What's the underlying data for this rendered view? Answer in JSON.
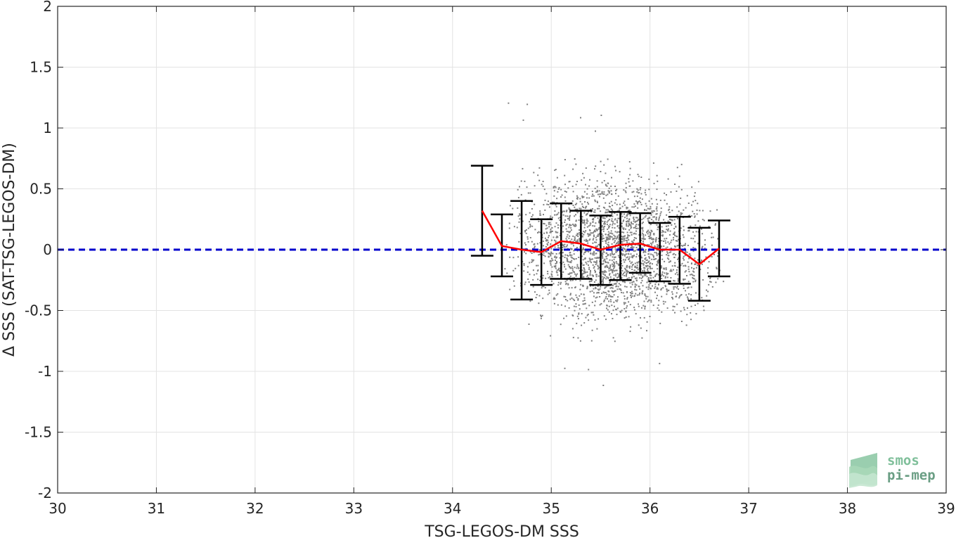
{
  "chart_data": {
    "type": "scatter",
    "title": "",
    "xlabel": "TSG-LEGOS-DM SSS",
    "ylabel": "Δ SSS (SAT-TSG-LEGOS-DM)",
    "xlim": [
      30,
      39
    ],
    "ylim": [
      -2,
      2
    ],
    "xticks": [
      30,
      31,
      32,
      33,
      34,
      35,
      36,
      37,
      38,
      39
    ],
    "yticks": [
      -2,
      -1.5,
      -1,
      -0.5,
      0,
      0.5,
      1,
      1.5,
      2
    ],
    "xtick_labels": [
      "30",
      "31",
      "32",
      "33",
      "34",
      "35",
      "36",
      "37",
      "38",
      "39"
    ],
    "ytick_labels": [
      "-2",
      "-1.5",
      "-1",
      "-0.5",
      "0",
      "0.5",
      "1",
      "1.5",
      "2"
    ],
    "grid": true,
    "zero_line": {
      "y": 0,
      "color": "#0000cc",
      "style": "dashed"
    },
    "scatter": {
      "color": "#808080",
      "x_range": [
        34.3,
        36.8
      ],
      "center": 0.02,
      "spread": 0.27,
      "count": 2600,
      "points": [
        [
          34.56,
          1.21
        ],
        [
          34.75,
          1.2
        ],
        [
          34.71,
          1.07
        ],
        [
          35.29,
          1.09
        ],
        [
          35.5,
          1.11
        ],
        [
          35.44,
          0.98
        ],
        [
          35.52,
          -1.11
        ],
        [
          35.37,
          -0.98
        ],
        [
          35.13,
          -0.97
        ],
        [
          36.09,
          -0.93
        ]
      ]
    },
    "mean_series": {
      "name": "",
      "color": "#ff0000",
      "x": [
        34.3,
        34.5,
        34.7,
        34.9,
        35.1,
        35.3,
        35.5,
        35.7,
        35.9,
        36.1,
        36.3,
        36.5,
        36.7
      ],
      "y": [
        0.32,
        0.03,
        0.0,
        -0.02,
        0.07,
        0.05,
        0.0,
        0.04,
        0.05,
        0.0,
        0.0,
        -0.12,
        0.01
      ],
      "upper": [
        0.69,
        0.29,
        0.4,
        0.25,
        0.38,
        0.32,
        0.28,
        0.31,
        0.3,
        0.22,
        0.27,
        0.18,
        0.24
      ],
      "lower": [
        -0.05,
        -0.22,
        -0.41,
        -0.29,
        -0.24,
        -0.24,
        -0.29,
        -0.25,
        -0.19,
        -0.26,
        -0.28,
        -0.42,
        -0.22
      ]
    },
    "errorbar_color": "#000000"
  },
  "logo": {
    "line1": "smos",
    "line2": "pi-mep"
  }
}
